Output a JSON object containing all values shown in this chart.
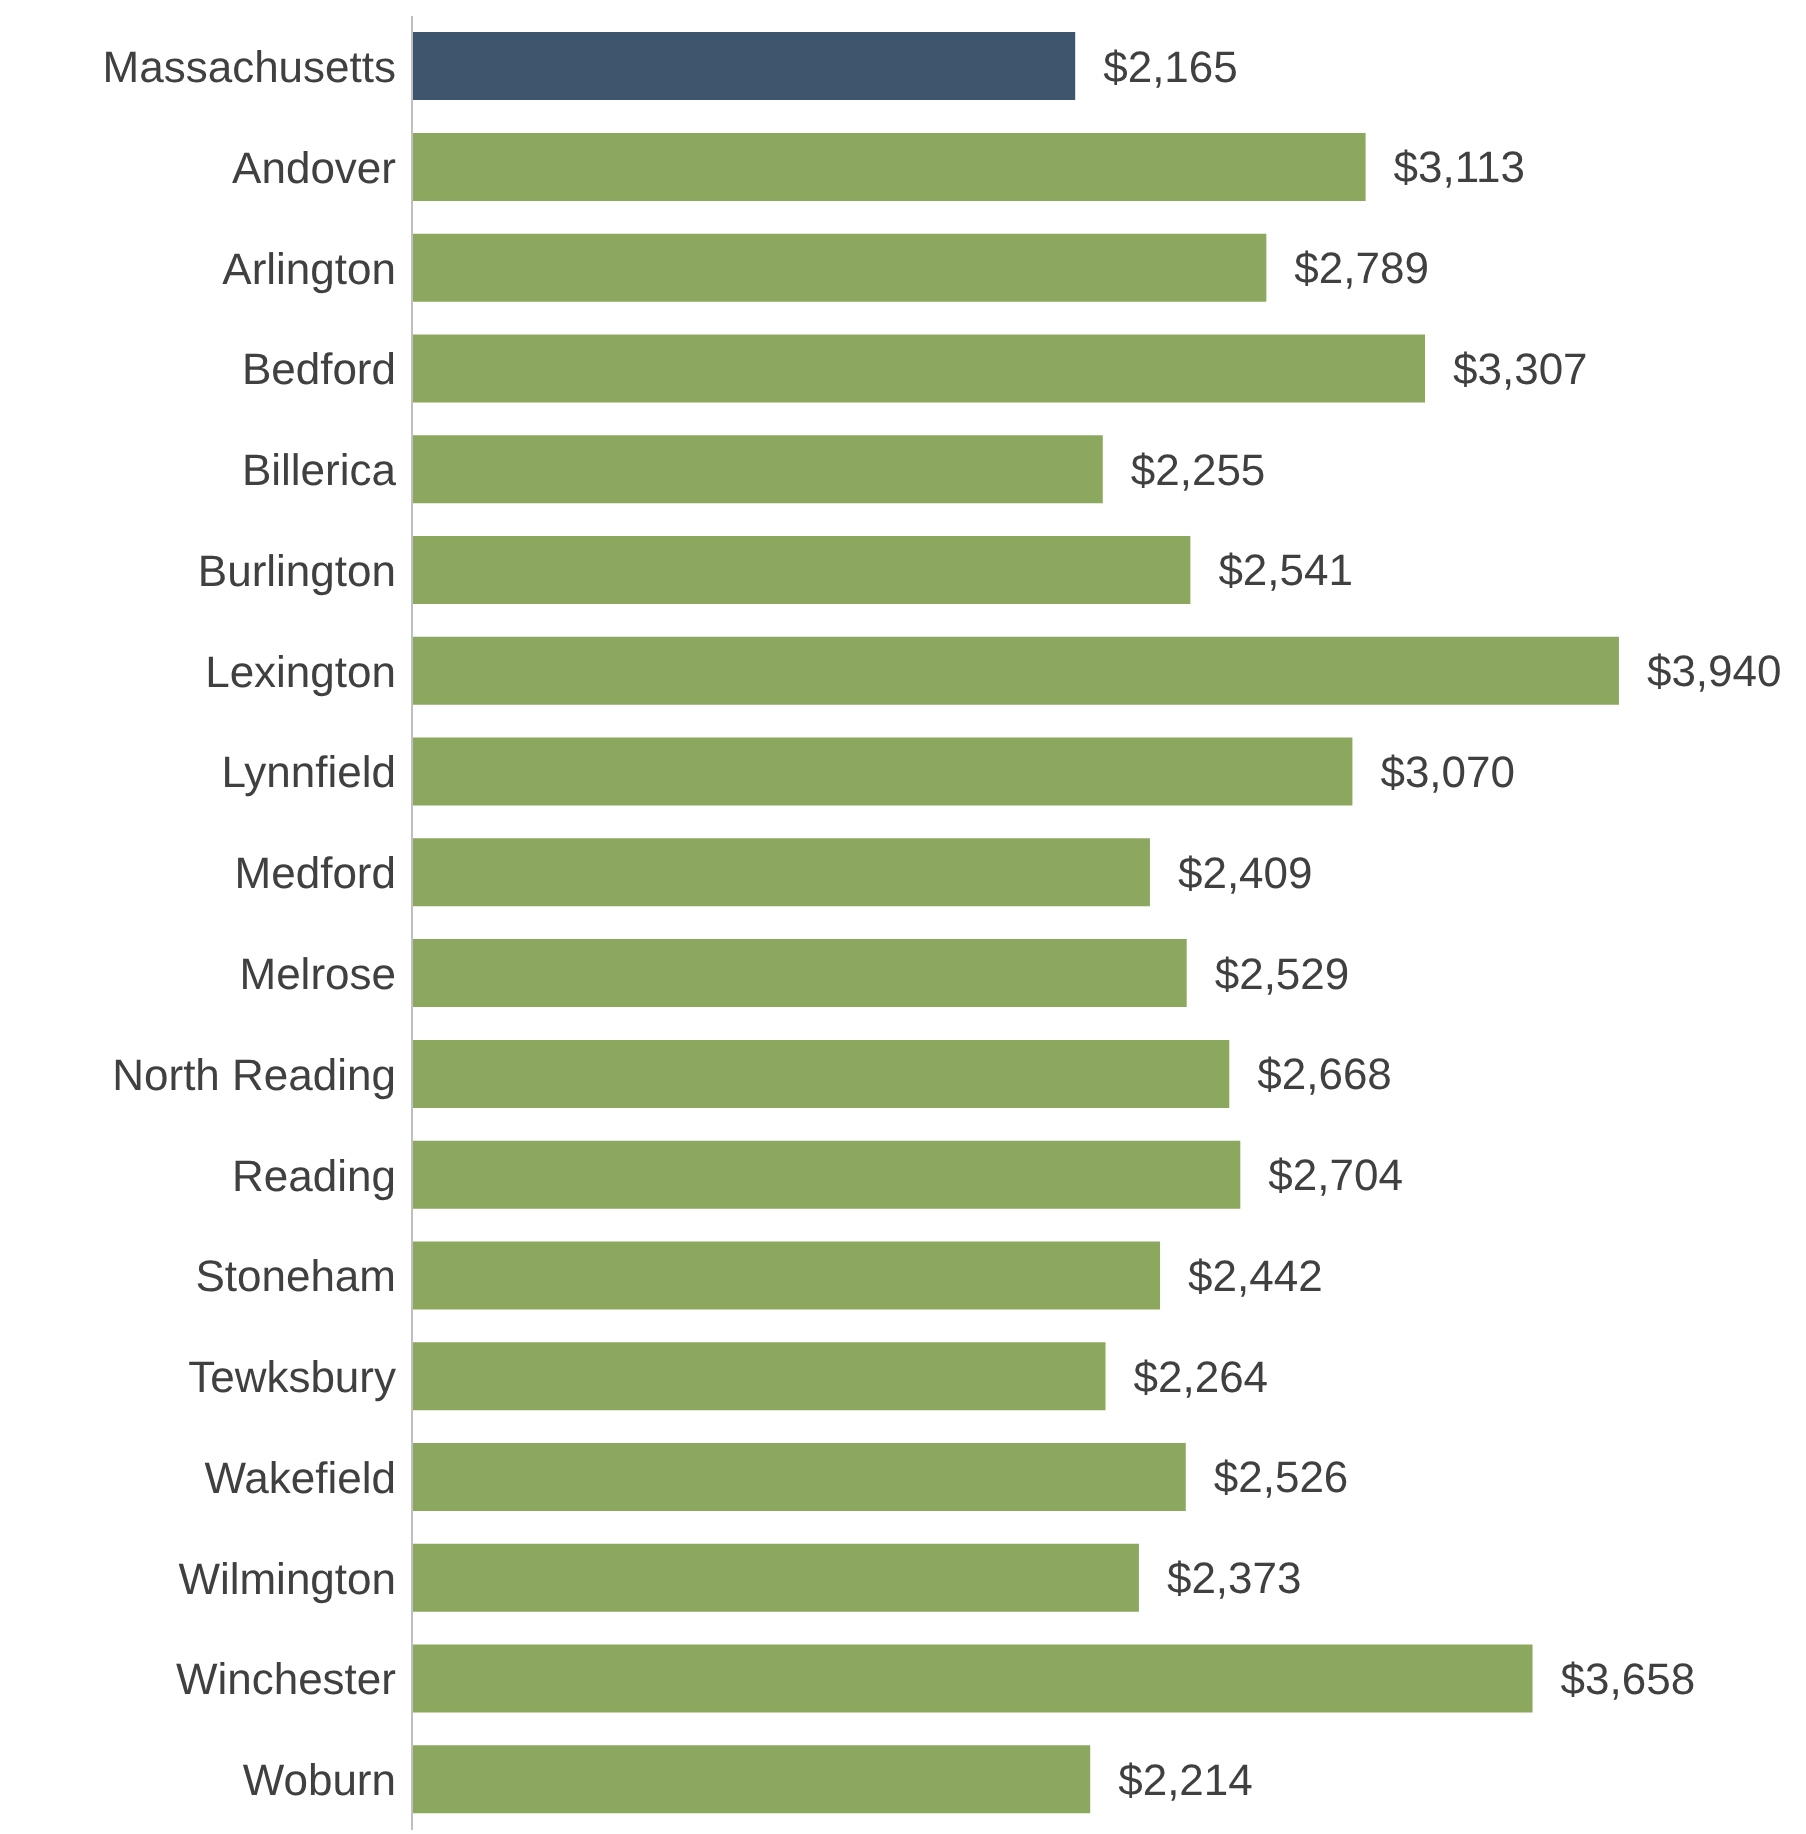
{
  "chart_data": {
    "type": "bar",
    "orientation": "horizontal",
    "categories": [
      "Massachusetts",
      "Andover",
      "Arlington",
      "Bedford",
      "Billerica",
      "Burlington",
      "Lexington",
      "Lynnfield",
      "Medford",
      "Melrose",
      "North Reading",
      "Reading",
      "Stoneham",
      "Tewksbury",
      "Wakefield",
      "Wilmington",
      "Winchester",
      "Woburn"
    ],
    "values": [
      2165,
      3113,
      2789,
      3307,
      2255,
      2541,
      3940,
      3070,
      2409,
      2529,
      2668,
      2704,
      2442,
      2264,
      2526,
      2373,
      3658,
      2214
    ],
    "colors": [
      "#3d566e",
      "#8ba85e",
      "#8ba85e",
      "#8ba85e",
      "#8ba85e",
      "#8ba85e",
      "#8ba85e",
      "#8ba85e",
      "#8ba85e",
      "#8ba85e",
      "#8ba85e",
      "#8ba85e",
      "#8ba85e",
      "#8ba85e",
      "#8ba85e",
      "#8ba85e",
      "#8ba85e",
      "#8ba85e"
    ],
    "value_labels": [
      "$2,165",
      "$3,113",
      "$2,789",
      "$3,307",
      "$2,255",
      "$2,541",
      "$3,940",
      "$3,070",
      "$2,409",
      "$2,529",
      "$2,668",
      "$2,704",
      "$2,442",
      "$2,264",
      "$2,526",
      "$2,373",
      "$3,658",
      "$2,214"
    ],
    "grid": false,
    "legend": false
  }
}
